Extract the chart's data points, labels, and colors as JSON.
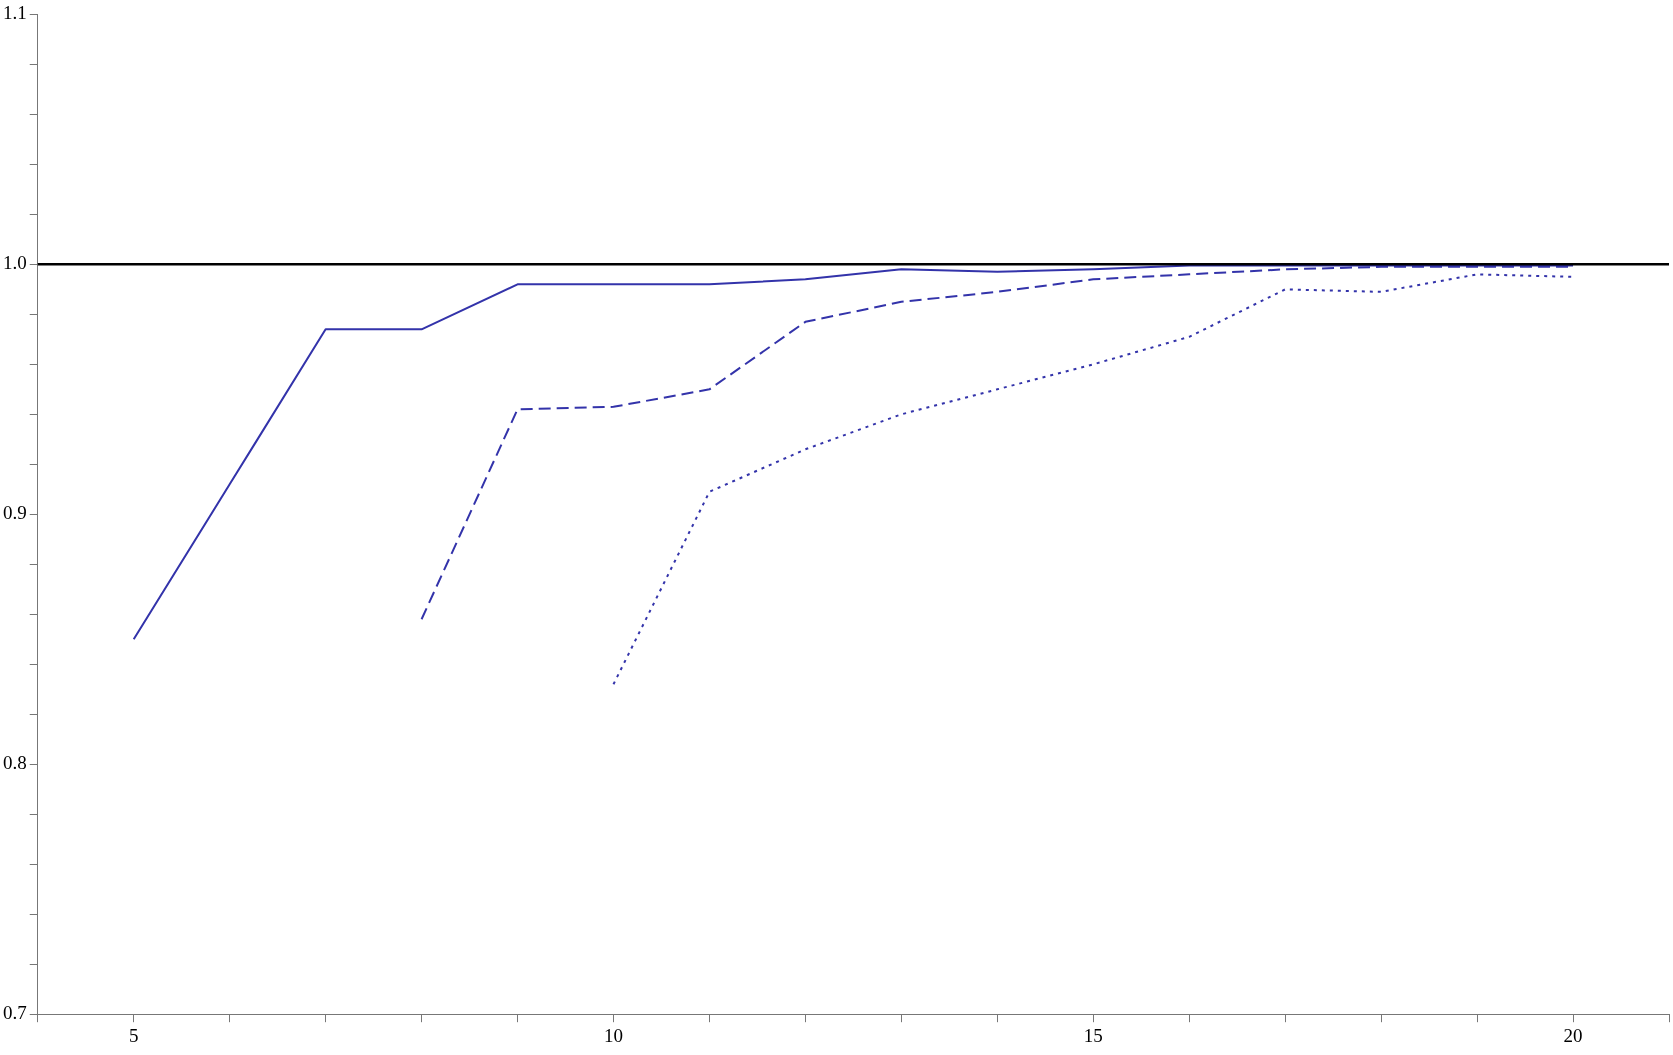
{
  "chart_data": {
    "type": "line",
    "x": [
      5,
      6,
      7,
      8,
      9,
      10,
      11,
      12,
      13,
      14,
      15,
      16,
      17,
      18,
      19,
      20
    ],
    "series": [
      {
        "color": "#3333aa",
        "line_style": "solid",
        "values": [
          0.85,
          0.912,
          0.974,
          0.974,
          0.992,
          0.992,
          0.992,
          0.994,
          0.998,
          0.997,
          0.998,
          0.9995,
          0.9995,
          0.9995,
          0.9995,
          0.9995
        ]
      },
      {
        "color": "#3333aa",
        "line_style": "dashed",
        "values": [
          null,
          null,
          null,
          0.858,
          0.942,
          0.943,
          0.95,
          0.977,
          0.985,
          0.989,
          0.994,
          0.996,
          0.998,
          0.999,
          0.999,
          0.999
        ]
      },
      {
        "color": "#3333aa",
        "line_style": "dotted",
        "values": [
          null,
          null,
          null,
          null,
          null,
          0.832,
          0.909,
          0.926,
          0.94,
          0.95,
          0.96,
          0.971,
          0.99,
          0.989,
          0.996,
          0.995
        ]
      }
    ],
    "xlim": [
      4,
      21
    ],
    "xticks": [
      {
        "value": 4,
        "label": null
      },
      5,
      {
        "value": 6,
        "label": null
      },
      {
        "value": 7,
        "label": null
      },
      {
        "value": 8,
        "label": null
      },
      {
        "value": 9,
        "label": null
      },
      10,
      {
        "value": 11,
        "label": null
      },
      {
        "value": 12,
        "label": null
      },
      {
        "value": 13,
        "label": null
      },
      {
        "value": 14,
        "label": null
      },
      15,
      {
        "value": 16,
        "label": null
      },
      {
        "value": 17,
        "label": null
      },
      {
        "value": 18,
        "label": null
      },
      {
        "value": 19,
        "label": null
      },
      20,
      {
        "value": 21,
        "label": null
      }
    ],
    "ylim": [
      0.7,
      1.1
    ],
    "yticks": [
      0.7,
      {
        "value": 0.72,
        "label": null
      },
      {
        "value": 0.74,
        "label": null
      },
      {
        "value": 0.76,
        "label": null
      },
      {
        "value": 0.78,
        "label": null
      },
      0.8,
      {
        "value": 0.82,
        "label": null
      },
      {
        "value": 0.84,
        "label": null
      },
      {
        "value": 0.86,
        "label": null
      },
      {
        "value": 0.88,
        "label": null
      },
      0.9,
      {
        "value": 0.92,
        "label": null
      },
      {
        "value": 0.94,
        "label": null
      },
      {
        "value": 0.96,
        "label": null
      },
      {
        "value": 0.98,
        "label": null
      },
      {
        "value": 1.0,
        "label": "1.0"
      },
      {
        "value": 1.02,
        "label": null
      },
      {
        "value": 1.04,
        "label": null
      },
      {
        "value": 1.06,
        "label": null
      },
      {
        "value": 1.08,
        "label": null
      },
      1.1
    ],
    "ref_lines": [
      {
        "axis": "y",
        "value": 1.0,
        "color": "#000000"
      }
    ],
    "marker": "none",
    "grid": false,
    "legend": false
  }
}
